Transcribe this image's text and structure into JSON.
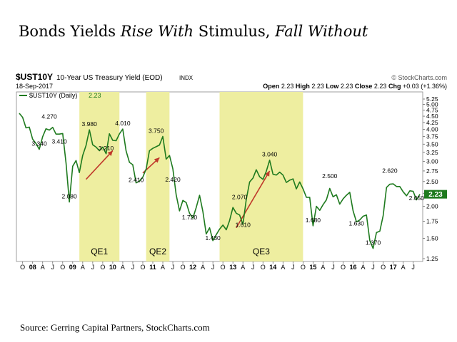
{
  "title": {
    "part1": "Bonds Yields ",
    "part2": "Rise With",
    "part3": " Stimulus, ",
    "part4": "Fall Without"
  },
  "header": {
    "symbol": "$UST10Y",
    "description": "10-Year US Treasury Yield (EOD)",
    "exchange": "INDX",
    "date": "18-Sep-2017",
    "credit": "© StockCharts.com",
    "quote": [
      {
        "label": "Open",
        "value": "2.23"
      },
      {
        "label": "High",
        "value": "2.23"
      },
      {
        "label": "Low",
        "value": "2.23"
      },
      {
        "label": "Close",
        "value": "2.23"
      },
      {
        "label": "Chg",
        "value": "+0.03 (+1.36%)"
      }
    ]
  },
  "legend": {
    "label": "$UST10Y (Daily)",
    "value": "2.23"
  },
  "source": "Source: Gerring Capital Partners, StockCharts.com",
  "colors": {
    "line": "#1e7a1e",
    "band": "#eeeea0",
    "arrow": "#c0392b",
    "last_value_box": "#1e7a1e"
  },
  "chart_data": {
    "type": "line",
    "title": "Bonds Yields Rise With Stimulus, Fall Without",
    "series": [
      {
        "name": "$UST10Y (Daily)",
        "x": [
          "2007-09",
          "2007-10",
          "2007-11",
          "2007-12",
          "2008-01",
          "2008-02",
          "2008-03",
          "2008-04",
          "2008-05",
          "2008-06",
          "2008-07",
          "2008-08",
          "2008-09",
          "2008-10",
          "2008-11",
          "2008-12",
          "2009-01",
          "2009-02",
          "2009-03",
          "2009-04",
          "2009-05",
          "2009-06",
          "2009-07",
          "2009-08",
          "2009-09",
          "2009-10",
          "2009-11",
          "2009-12",
          "2010-01",
          "2010-02",
          "2010-03",
          "2010-04",
          "2010-05",
          "2010-06",
          "2010-07",
          "2010-08",
          "2010-09",
          "2010-10",
          "2010-11",
          "2010-12",
          "2011-01",
          "2011-02",
          "2011-03",
          "2011-04",
          "2011-05",
          "2011-06",
          "2011-07",
          "2011-08",
          "2011-09",
          "2011-10",
          "2011-11",
          "2011-12",
          "2012-01",
          "2012-02",
          "2012-03",
          "2012-04",
          "2012-05",
          "2012-06",
          "2012-07",
          "2012-08",
          "2012-09",
          "2012-10",
          "2012-11",
          "2012-12",
          "2013-01",
          "2013-02",
          "2013-03",
          "2013-04",
          "2013-05",
          "2013-06",
          "2013-07",
          "2013-08",
          "2013-09",
          "2013-10",
          "2013-11",
          "2013-12",
          "2014-01",
          "2014-02",
          "2014-03",
          "2014-04",
          "2014-05",
          "2014-06",
          "2014-07",
          "2014-08",
          "2014-09",
          "2014-10",
          "2014-11",
          "2014-12",
          "2015-01",
          "2015-02",
          "2015-03",
          "2015-04",
          "2015-05",
          "2015-06",
          "2015-07",
          "2015-08",
          "2015-09",
          "2015-10",
          "2015-11",
          "2015-12",
          "2016-01",
          "2016-02",
          "2016-03",
          "2016-04",
          "2016-05",
          "2016-06",
          "2016-07",
          "2016-08",
          "2016-09",
          "2016-10",
          "2016-11",
          "2016-12",
          "2017-01",
          "2017-02",
          "2017-03",
          "2017-04",
          "2017-05",
          "2017-06",
          "2017-07",
          "2017-08",
          "2017-09"
        ],
        "values": [
          4.62,
          4.45,
          4.05,
          4.08,
          3.66,
          3.52,
          3.34,
          3.74,
          4.02,
          3.97,
          4.07,
          3.83,
          3.83,
          3.85,
          2.95,
          2.08,
          2.87,
          3.02,
          2.71,
          3.16,
          3.46,
          3.98,
          3.48,
          3.41,
          3.3,
          3.41,
          3.21,
          3.84,
          3.62,
          3.61,
          3.84,
          4.01,
          3.29,
          2.97,
          2.91,
          2.47,
          2.51,
          2.6,
          2.8,
          3.3,
          3.37,
          3.42,
          3.47,
          3.75,
          3.06,
          3.16,
          2.8,
          2.22,
          1.92,
          2.11,
          2.07,
          1.88,
          1.8,
          1.98,
          2.21,
          1.91,
          1.56,
          1.65,
          1.47,
          1.55,
          1.63,
          1.69,
          1.62,
          1.76,
          1.98,
          1.88,
          1.85,
          1.7,
          2.13,
          2.49,
          2.58,
          2.78,
          2.61,
          2.55,
          2.74,
          3.03,
          2.67,
          2.65,
          2.72,
          2.65,
          2.48,
          2.53,
          2.56,
          2.34,
          2.49,
          2.34,
          2.17,
          2.17,
          1.68,
          2.0,
          1.93,
          2.03,
          2.12,
          2.35,
          2.18,
          2.22,
          2.04,
          2.14,
          2.21,
          2.27,
          1.92,
          1.74,
          1.77,
          1.83,
          1.85,
          1.47,
          1.37,
          1.58,
          1.6,
          1.84,
          2.37,
          2.44,
          2.45,
          2.39,
          2.39,
          2.28,
          2.2,
          2.3,
          2.29,
          2.12,
          2.23
        ]
      }
    ],
    "y_ticks": [
      "1.25",
      "1.50",
      "1.75",
      "2.00",
      "2.25",
      "2.50",
      "2.75",
      "3.00",
      "3.25",
      "3.50",
      "3.75",
      "4.00",
      "4.25",
      "4.50",
      "4.75",
      "5.00",
      "5.25"
    ],
    "ylim": [
      1.25,
      5.25
    ],
    "x_tick_labels": [
      {
        "date": "2007-10",
        "label": "O"
      },
      {
        "date": "2008-01",
        "label": "08"
      },
      {
        "date": "2008-04",
        "label": "A"
      },
      {
        "date": "2008-07",
        "label": "J"
      },
      {
        "date": "2008-10",
        "label": "O"
      },
      {
        "date": "2009-01",
        "label": "09"
      },
      {
        "date": "2009-04",
        "label": "A"
      },
      {
        "date": "2009-07",
        "label": "J"
      },
      {
        "date": "2009-10",
        "label": "O"
      },
      {
        "date": "2010-01",
        "label": "10"
      },
      {
        "date": "2010-04",
        "label": "A"
      },
      {
        "date": "2010-07",
        "label": "J"
      },
      {
        "date": "2010-10",
        "label": "O"
      },
      {
        "date": "2011-01",
        "label": "11"
      },
      {
        "date": "2011-04",
        "label": "A"
      },
      {
        "date": "2011-07",
        "label": "J"
      },
      {
        "date": "2011-10",
        "label": "O"
      },
      {
        "date": "2012-01",
        "label": "12"
      },
      {
        "date": "2012-04",
        "label": "A"
      },
      {
        "date": "2012-07",
        "label": "J"
      },
      {
        "date": "2012-10",
        "label": "O"
      },
      {
        "date": "2013-01",
        "label": "13"
      },
      {
        "date": "2013-04",
        "label": "A"
      },
      {
        "date": "2013-07",
        "label": "J"
      },
      {
        "date": "2013-10",
        "label": "O"
      },
      {
        "date": "2014-01",
        "label": "14"
      },
      {
        "date": "2014-04",
        "label": "A"
      },
      {
        "date": "2014-07",
        "label": "J"
      },
      {
        "date": "2014-10",
        "label": "O"
      },
      {
        "date": "2015-01",
        "label": "15"
      },
      {
        "date": "2015-04",
        "label": "A"
      },
      {
        "date": "2015-07",
        "label": "J"
      },
      {
        "date": "2015-10",
        "label": "O"
      },
      {
        "date": "2016-01",
        "label": "16"
      },
      {
        "date": "2016-04",
        "label": "A"
      },
      {
        "date": "2016-07",
        "label": "J"
      },
      {
        "date": "2016-10",
        "label": "O"
      },
      {
        "date": "2017-01",
        "label": "17"
      },
      {
        "date": "2017-04",
        "label": "A"
      },
      {
        "date": "2017-07",
        "label": "J"
      }
    ],
    "annotations": [
      {
        "date": "2008-03",
        "value": 3.34,
        "text": "3.340"
      },
      {
        "date": "2008-06",
        "value": 4.27,
        "text": "4.270"
      },
      {
        "date": "2008-09",
        "value": 3.41,
        "text": "3.410"
      },
      {
        "date": "2008-12",
        "value": 2.08,
        "text": "2.080"
      },
      {
        "date": "2009-06",
        "value": 3.98,
        "text": "3.980"
      },
      {
        "date": "2009-11",
        "value": 3.21,
        "text": "3.210"
      },
      {
        "date": "2010-04",
        "value": 4.01,
        "text": "4.010"
      },
      {
        "date": "2010-08",
        "value": 2.41,
        "text": "2.410"
      },
      {
        "date": "2011-02",
        "value": 3.75,
        "text": "3.750"
      },
      {
        "date": "2011-07",
        "value": 2.42,
        "text": "2.420"
      },
      {
        "date": "2011-12",
        "value": 1.72,
        "text": "1.720"
      },
      {
        "date": "2012-07",
        "value": 1.43,
        "text": "1.430"
      },
      {
        "date": "2013-03",
        "value": 2.07,
        "text": "2.070"
      },
      {
        "date": "2013-04",
        "value": 1.61,
        "text": "1.610"
      },
      {
        "date": "2013-12",
        "value": 3.04,
        "text": "3.040"
      },
      {
        "date": "2015-01",
        "value": 1.68,
        "text": "1.680"
      },
      {
        "date": "2015-06",
        "value": 2.5,
        "text": "2.500"
      },
      {
        "date": "2016-02",
        "value": 1.63,
        "text": "1.630"
      },
      {
        "date": "2016-07",
        "value": 1.37,
        "text": "1.370"
      },
      {
        "date": "2016-12",
        "value": 2.62,
        "text": "2.620"
      },
      {
        "date": "2017-08",
        "value": 2.05,
        "text": "2.050"
      }
    ],
    "bands": [
      {
        "label": "QE1",
        "start": "2009-03",
        "end": "2010-03"
      },
      {
        "label": "QE2",
        "start": "2010-11",
        "end": "2011-06"
      },
      {
        "label": "QE3",
        "start": "2012-09",
        "end": "2014-10"
      }
    ],
    "arrows": [
      {
        "from_date": "2009-05",
        "from_value": 2.55,
        "to_date": "2010-01",
        "to_value": 3.3
      },
      {
        "from_date": "2010-10",
        "from_value": 2.7,
        "to_date": "2011-03",
        "to_value": 3.1
      },
      {
        "from_date": "2013-02",
        "from_value": 1.65,
        "to_date": "2013-12",
        "to_value": 2.75
      }
    ],
    "last_value": "2.23",
    "grid": false
  }
}
